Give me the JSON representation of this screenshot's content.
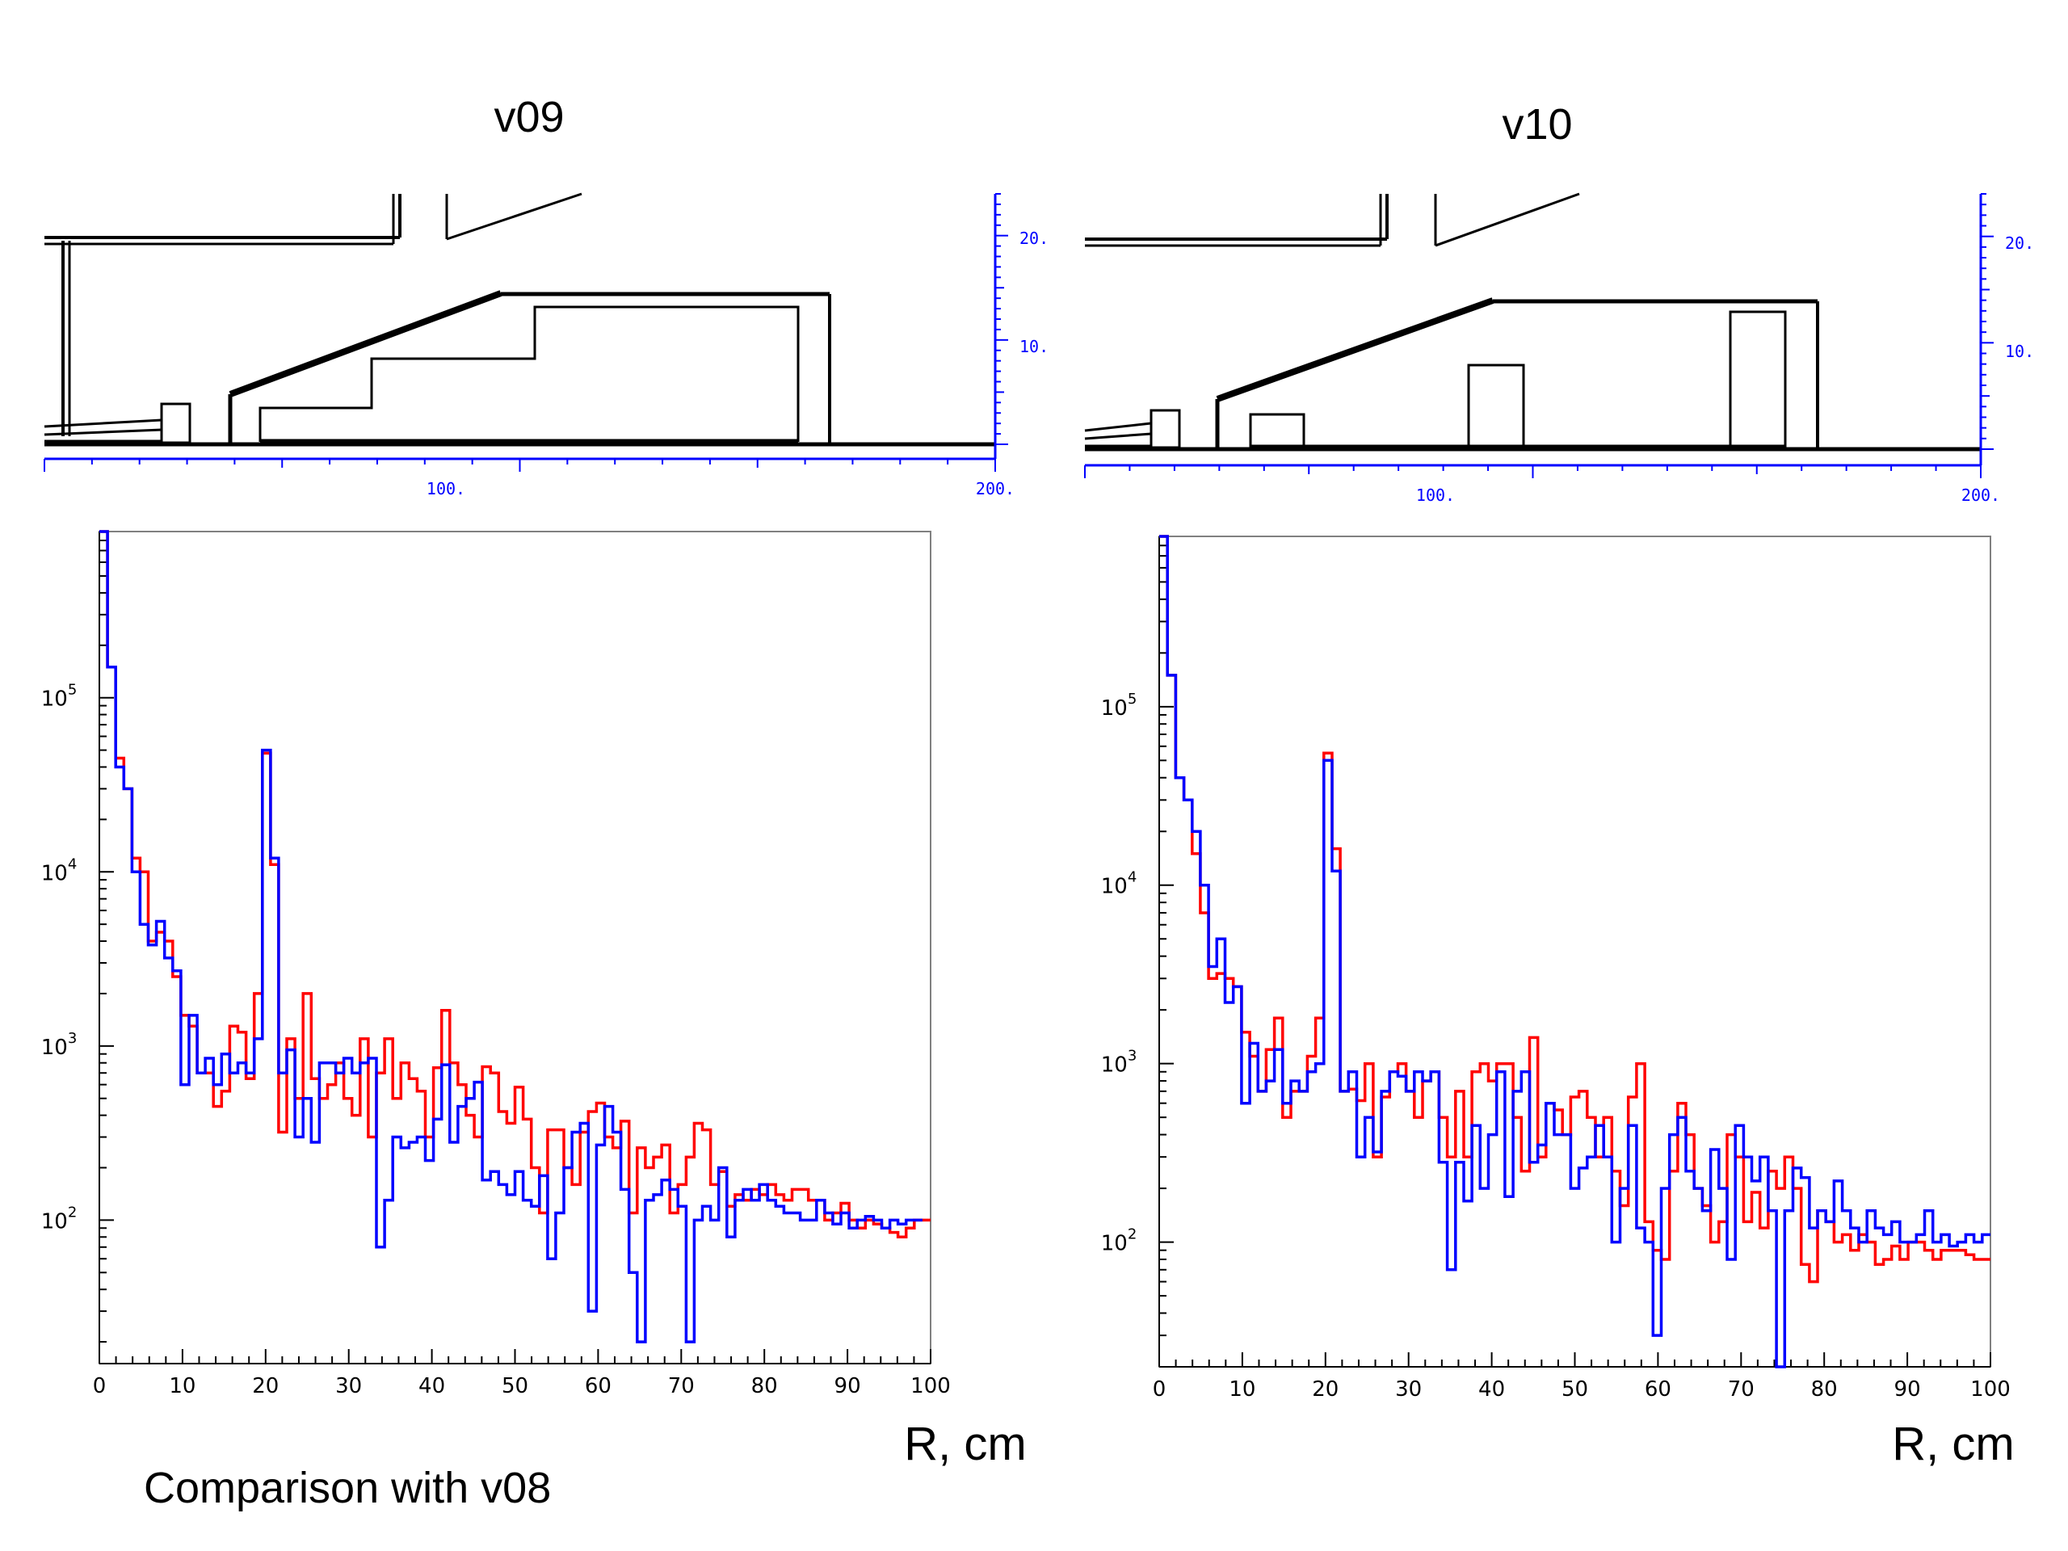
{
  "panels": [
    {
      "title": "v09",
      "xlabel": "R, cm"
    },
    {
      "title": "v10",
      "xlabel": "R, cm"
    }
  ],
  "footer_note": "Comparison with v08",
  "colors": {
    "series_a": "#ff0000",
    "series_b": "#0000ff",
    "axis": "#000000",
    "geom_axis": "#0000ff",
    "frame": "#808080"
  },
  "geometry_axes": {
    "x_ticks": [
      "100.",
      "200."
    ],
    "y_ticks": [
      "10.",
      "20."
    ]
  },
  "chart_data": [
    {
      "type": "line",
      "step": true,
      "panel": "v09",
      "xlim": [
        0,
        100
      ],
      "ylim": [
        15,
        900000
      ],
      "yscale": "log",
      "x_ticks": [
        "0",
        "10",
        "20",
        "30",
        "40",
        "50",
        "60",
        "70",
        "80",
        "90",
        "100"
      ],
      "y_ticks": [
        100,
        1000,
        10000,
        100000
      ],
      "y_tick_labels": [
        "10^2",
        "10^3",
        "10^4",
        "10^5"
      ],
      "series": [
        {
          "color": "#ff0000",
          "values": [
            900000,
            150000,
            45000,
            30000,
            12000,
            10000,
            4000,
            4500,
            4000,
            2500,
            1500,
            1300,
            700,
            700,
            450,
            550,
            1300,
            1200,
            650,
            2000,
            48000,
            11000,
            320,
            1100,
            500,
            2000,
            650,
            500,
            600,
            800,
            500,
            400,
            1100,
            300,
            700,
            1100,
            500,
            800,
            650,
            550,
            300,
            750,
            1600,
            800,
            600,
            400,
            300,
            760,
            700,
            420,
            360,
            580,
            380,
            200,
            110,
            330,
            330,
            200,
            160,
            320,
            420,
            470,
            300,
            260,
            370,
            110,
            260,
            200,
            230,
            270,
            110,
            160,
            230,
            360,
            330,
            160,
            190,
            120,
            140,
            130,
            150,
            140,
            160,
            140,
            130,
            150,
            150,
            130,
            130,
            100,
            110,
            125,
            100,
            90,
            100,
            95,
            90,
            85,
            80,
            90,
            100,
            100
          ]
        },
        {
          "color": "#0000ff",
          "values": [
            900000,
            150000,
            40000,
            30000,
            10000,
            5000,
            3800,
            5200,
            3200,
            2700,
            600,
            1500,
            700,
            850,
            600,
            900,
            700,
            800,
            700,
            1100,
            50000,
            12000,
            700,
            950,
            300,
            500,
            280,
            800,
            800,
            700,
            850,
            700,
            800,
            850,
            70,
            130,
            300,
            260,
            280,
            300,
            220,
            380,
            780,
            280,
            450,
            500,
            620,
            170,
            190,
            160,
            140,
            190,
            130,
            120,
            180,
            60,
            110,
            200,
            320,
            360,
            30,
            270,
            450,
            320,
            150,
            50,
            20,
            130,
            140,
            170,
            150,
            120,
            20,
            100,
            120,
            100,
            200,
            80,
            130,
            150,
            130,
            160,
            130,
            120,
            110,
            110,
            100,
            100,
            130,
            110,
            95,
            110,
            90,
            100,
            105,
            100,
            90,
            100,
            95,
            100,
            100
          ]
        }
      ]
    },
    {
      "type": "line",
      "step": true,
      "panel": "v10",
      "xlim": [
        0,
        100
      ],
      "ylim": [
        20,
        900000
      ],
      "yscale": "log",
      "x_ticks": [
        "0",
        "10",
        "20",
        "30",
        "40",
        "50",
        "60",
        "70",
        "80",
        "90",
        "100"
      ],
      "y_ticks": [
        100,
        1000,
        10000,
        100000
      ],
      "y_tick_labels": [
        "10^2",
        "10^3",
        "10^4",
        "10^5"
      ],
      "series": [
        {
          "color": "#ff0000",
          "values": [
            900000,
            150000,
            40000,
            30000,
            15000,
            7000,
            3000,
            3200,
            3000,
            2700,
            1500,
            1100,
            700,
            1200,
            1800,
            500,
            700,
            700,
            1100,
            1800,
            55000,
            16000,
            700,
            720,
            620,
            1000,
            300,
            650,
            900,
            1000,
            700,
            500,
            800,
            900,
            500,
            300,
            700,
            300,
            900,
            1000,
            800,
            1000,
            1000,
            500,
            250,
            1400,
            300,
            600,
            550,
            400,
            650,
            700,
            500,
            300,
            500,
            250,
            160,
            650,
            1000,
            130,
            90,
            80,
            250,
            600,
            400,
            200,
            160,
            100,
            130,
            400,
            300,
            130,
            190,
            120,
            250,
            200,
            300,
            200,
            75,
            60,
            150,
            130,
            100,
            110,
            90,
            110,
            100,
            75,
            80,
            95,
            80,
            100,
            100,
            90,
            80,
            90,
            90,
            90,
            85,
            80,
            80
          ]
        },
        {
          "color": "#0000ff",
          "values": [
            900000,
            150000,
            40000,
            30000,
            20000,
            10000,
            3500,
            5000,
            2200,
            2700,
            600,
            1300,
            700,
            800,
            1200,
            600,
            800,
            700,
            900,
            1000,
            50000,
            12000,
            700,
            900,
            300,
            500,
            320,
            700,
            900,
            850,
            700,
            900,
            800,
            900,
            280,
            70,
            280,
            170,
            450,
            200,
            400,
            900,
            180,
            700,
            900,
            280,
            350,
            600,
            400,
            400,
            200,
            260,
            300,
            450,
            300,
            100,
            200,
            450,
            120,
            100,
            30,
            200,
            400,
            500,
            250,
            200,
            150,
            330,
            200,
            80,
            450,
            300,
            220,
            300,
            150,
            20,
            150,
            260,
            230,
            120,
            150,
            130,
            220,
            150,
            120,
            100,
            150,
            120,
            110,
            130,
            100,
            100,
            110,
            150,
            100,
            110,
            95,
            100,
            110,
            100,
            110
          ]
        }
      ]
    }
  ]
}
